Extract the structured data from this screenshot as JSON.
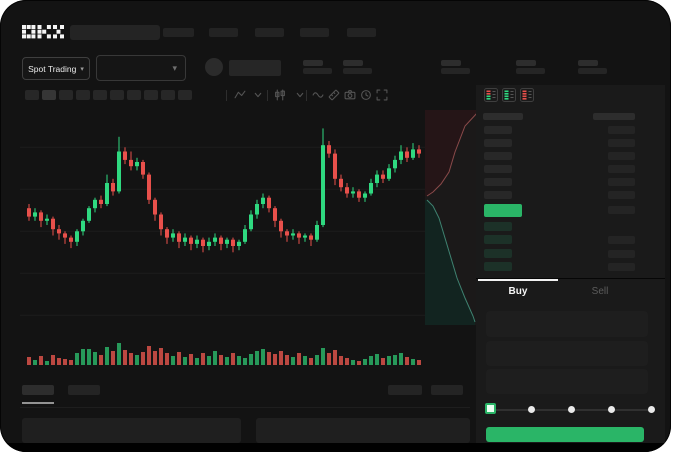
{
  "brand": {
    "name": "OKX"
  },
  "top_nav": {
    "search_bar_placeholder": "",
    "item_count": 5
  },
  "ticker_bar": {
    "market_selector": {
      "label": "Spot Trading",
      "caret": "▾"
    },
    "pair_dropdown_caret": "▾",
    "stat_group_count": 5
  },
  "chart_toolbar": {
    "timeframe_slot_count": 10,
    "active_timeframe_index": 1,
    "icons": [
      "line-style-icon",
      "caret-down-icon",
      "candle-style-icon",
      "caret-down-icon",
      "wave-indicator-icon",
      "ruler-icon",
      "camera-icon",
      "clock-icon",
      "fullscreen-icon"
    ]
  },
  "chart_data": {
    "type": "candlestick",
    "title": "",
    "axes_labeled": false,
    "price_scale": "relative 0-100 (skeleton chart, no axis labels visible)",
    "gridlines_price": [
      87,
      67,
      47,
      27,
      7
    ],
    "up_color": "#2fd980",
    "down_color": "#e8504b",
    "candles_ohlc": [
      [
        58,
        60,
        52,
        54
      ],
      [
        54,
        58,
        52,
        56
      ],
      [
        56,
        57,
        49,
        52
      ],
      [
        52,
        55,
        50,
        53
      ],
      [
        53,
        54,
        45,
        48
      ],
      [
        48,
        50,
        43,
        46
      ],
      [
        46,
        47,
        41,
        44
      ],
      [
        44,
        45,
        39,
        42
      ],
      [
        42,
        48,
        40,
        47
      ],
      [
        47,
        53,
        45,
        52
      ],
      [
        52,
        59,
        51,
        58
      ],
      [
        58,
        63,
        56,
        62
      ],
      [
        62,
        64,
        58,
        60
      ],
      [
        60,
        74,
        59,
        70
      ],
      [
        70,
        72,
        64,
        66
      ],
      [
        66,
        92,
        65,
        85
      ],
      [
        85,
        87,
        79,
        81
      ],
      [
        81,
        85,
        76,
        78
      ],
      [
        78,
        82,
        76,
        80
      ],
      [
        80,
        81,
        72,
        74
      ],
      [
        74,
        75,
        60,
        62
      ],
      [
        62,
        63,
        52,
        55
      ],
      [
        55,
        56,
        45,
        48
      ],
      [
        48,
        49,
        41,
        44
      ],
      [
        44,
        48,
        42,
        46
      ],
      [
        46,
        47,
        39,
        42
      ],
      [
        42,
        46,
        40,
        44
      ],
      [
        44,
        45,
        38,
        41
      ],
      [
        41,
        45,
        39,
        43
      ],
      [
        43,
        44,
        37,
        40
      ],
      [
        40,
        44,
        38,
        42
      ],
      [
        42,
        46,
        40,
        44
      ],
      [
        44,
        45,
        38,
        41
      ],
      [
        41,
        44,
        39,
        43
      ],
      [
        43,
        44,
        37,
        40
      ],
      [
        40,
        43,
        38,
        42
      ],
      [
        42,
        50,
        41,
        48
      ],
      [
        48,
        57,
        47,
        55
      ],
      [
        55,
        62,
        53,
        60
      ],
      [
        60,
        65,
        58,
        63
      ],
      [
        63,
        64,
        56,
        58
      ],
      [
        58,
        59,
        49,
        52
      ],
      [
        52,
        53,
        44,
        47
      ],
      [
        47,
        48,
        42,
        45
      ],
      [
        45,
        48,
        43,
        46
      ],
      [
        46,
        47,
        41,
        44
      ],
      [
        44,
        46,
        42,
        45
      ],
      [
        45,
        46,
        40,
        43
      ],
      [
        43,
        52,
        42,
        50
      ],
      [
        50,
        96,
        49,
        88
      ],
      [
        88,
        90,
        82,
        84
      ],
      [
        84,
        86,
        69,
        72
      ],
      [
        72,
        74,
        66,
        68
      ],
      [
        68,
        70,
        63,
        65
      ],
      [
        65,
        68,
        63,
        66
      ],
      [
        66,
        67,
        61,
        63
      ],
      [
        63,
        66,
        61,
        65
      ],
      [
        65,
        72,
        64,
        70
      ],
      [
        70,
        76,
        68,
        74
      ],
      [
        74,
        76,
        70,
        72
      ],
      [
        72,
        79,
        71,
        77
      ],
      [
        77,
        83,
        75,
        81
      ],
      [
        81,
        88,
        79,
        85
      ],
      [
        85,
        87,
        80,
        82
      ],
      [
        82,
        89,
        81,
        86
      ],
      [
        86,
        88,
        82,
        84
      ]
    ],
    "volumes": [
      8,
      5,
      9,
      4,
      10,
      7,
      6,
      5,
      12,
      16,
      16,
      13,
      10,
      18,
      14,
      22,
      15,
      12,
      10,
      13,
      19,
      14,
      17,
      12,
      9,
      13,
      8,
      11,
      7,
      12,
      9,
      14,
      10,
      8,
      12,
      9,
      7,
      11,
      14,
      16,
      13,
      11,
      14,
      10,
      8,
      12,
      9,
      7,
      10,
      17,
      12,
      15,
      9,
      7,
      5,
      4,
      6,
      9,
      11,
      7,
      9,
      10,
      12,
      8,
      6,
      5
    ]
  },
  "depth_preview": {
    "type": "depth",
    "ask_side": "top",
    "bid_side": "bottom"
  },
  "order_book": {
    "layout_icons": [
      "book-combined-icon",
      "book-bids-icon",
      "book-asks-icon"
    ],
    "ask_row_count": 6,
    "bid_row_count": 4,
    "bid_rows_with_amount": [
      1,
      2,
      3
    ]
  },
  "trade_form": {
    "tabs": [
      {
        "label": "Buy",
        "active": true
      },
      {
        "label": "Sell",
        "active": false
      }
    ],
    "field_count": 3,
    "slider": {
      "steps": 5,
      "active_index": 0
    }
  },
  "bottom_panel": {
    "tab_count": 2,
    "active_tab_index": 0,
    "right_bar_count": 2,
    "content_panel_count": 2
  },
  "colors": {
    "green": "#2ab567",
    "candle_up": "#2fd980",
    "candle_down": "#e8504b",
    "vol_up": "#2aa863",
    "vol_down": "#cf4f47",
    "bid_tint": "#1c3128",
    "depth_ask_line": "#8a4a4a",
    "depth_ask_fill": "#251517",
    "depth_bid_line": "#3f8371",
    "depth_bid_fill": "#122420"
  }
}
